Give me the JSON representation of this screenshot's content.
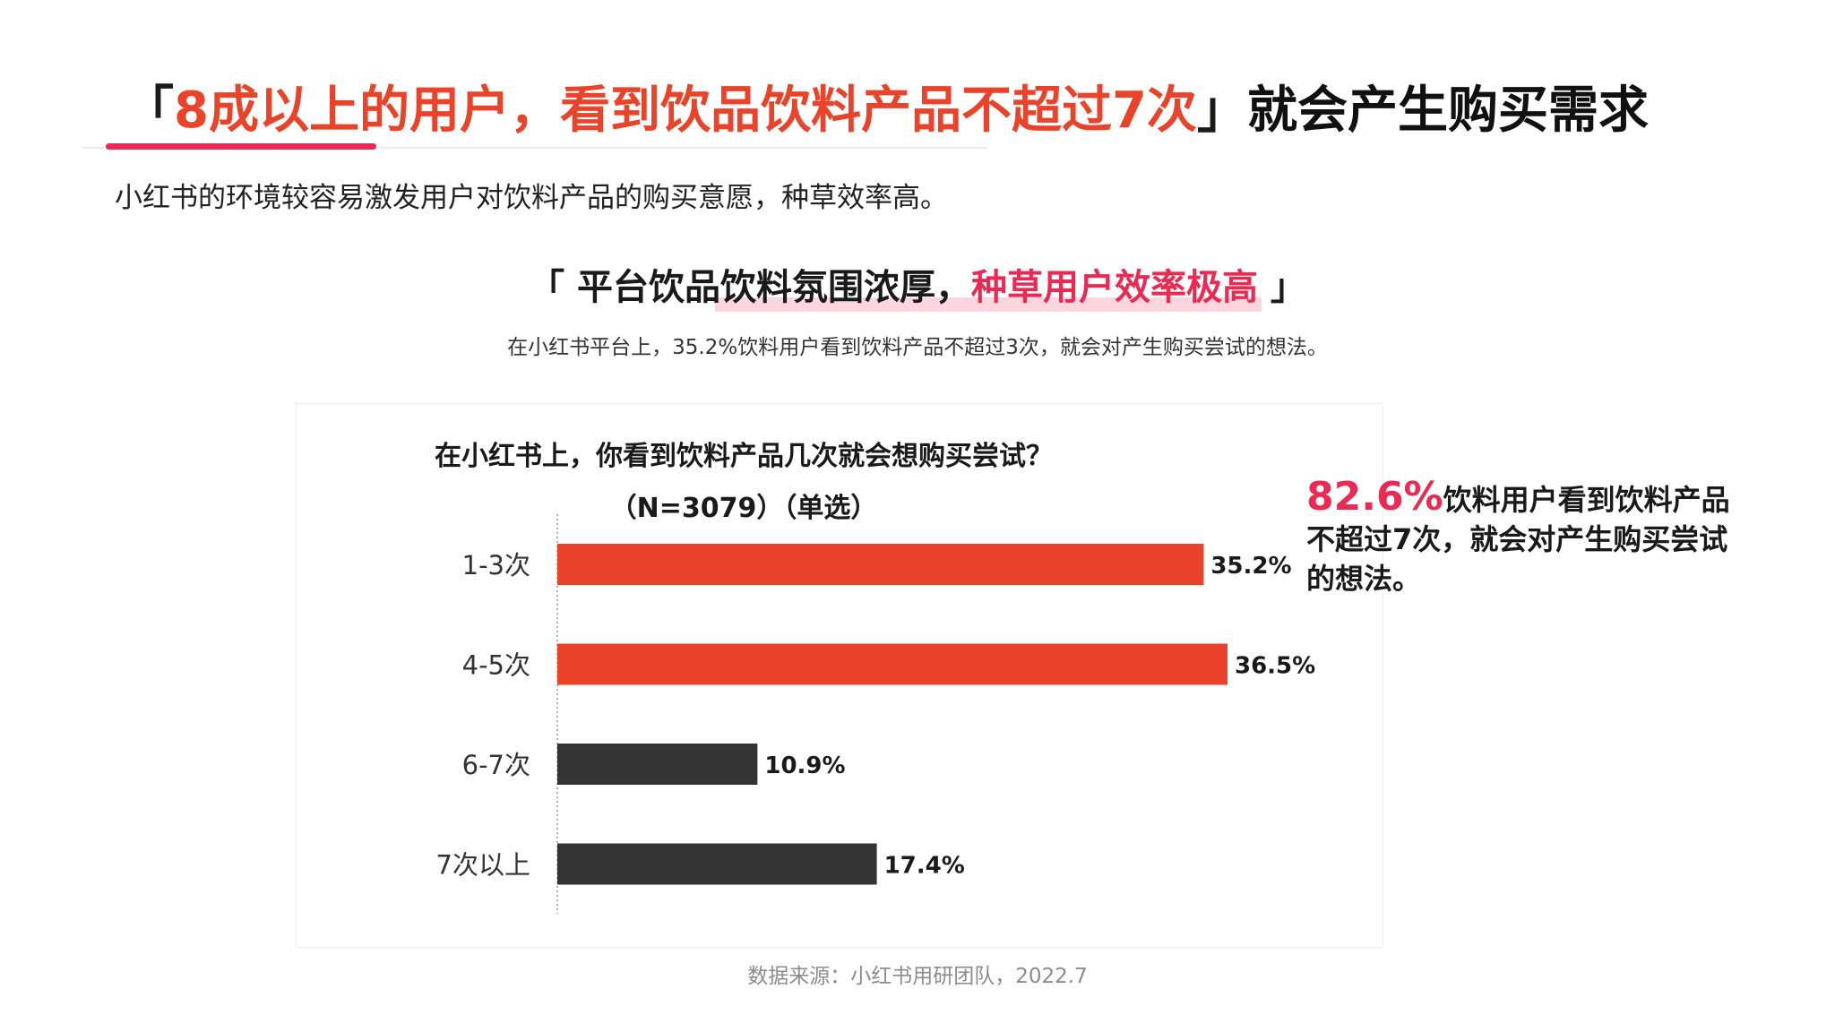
{
  "headline": {
    "bracket_open": "「",
    "accent": "8成以上的用户，看到饮品饮料产品不超过7次",
    "bracket_close": "」",
    "rest": "就会产生购买需求"
  },
  "subtitle": "小红书的环境较容易激发用户对饮料产品的购买意愿，种草效率高。",
  "section": {
    "open": "「 ",
    "part1": "平台饮品",
    "part2": "饮料氛围浓厚",
    "part3": "，",
    "part4": "种草用户效率极高",
    "close": " 」",
    "note": "在小红书平台上，35.2%饮料用户看到饮料产品不超过3次，就会对产生购买尝试的想法。"
  },
  "chart_data": {
    "type": "bar",
    "orientation": "horizontal",
    "title": "在小红书上，你看到饮料产品几次就会想购买尝试？",
    "subtitle": "（N=3079）（单选）",
    "categories": [
      "1-3次",
      "4-5次",
      "6-7次",
      "7次以上"
    ],
    "values": [
      35.2,
      36.5,
      10.9,
      17.4
    ],
    "value_labels": [
      "35.2%",
      "36.5%",
      "10.9%",
      "17.4%"
    ],
    "unit": "%",
    "xlim": [
      0,
      36.5
    ],
    "grid": false,
    "legend": "none",
    "bar_colors": [
      "#e9432a",
      "#e9432a",
      "#333333",
      "#333333"
    ]
  },
  "callout": {
    "big": "82.6%",
    "text": "饮料用户看到饮料产品不超过7次，就会对产生购买尝试的想法。"
  },
  "source": "数据来源：小红书用研团队，2022.7",
  "colors": {
    "accent_orange": "#e9432a",
    "accent_pink": "#ea2a52",
    "dark_bar": "#333333"
  }
}
